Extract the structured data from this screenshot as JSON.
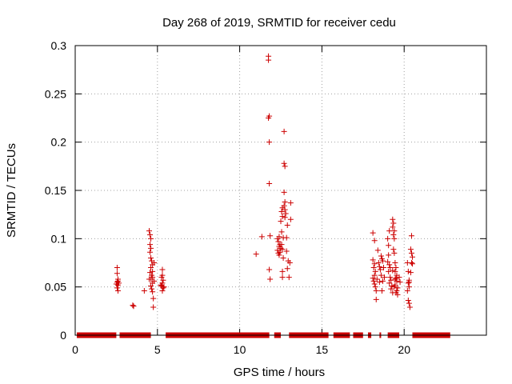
{
  "chart_data": {
    "type": "scatter",
    "title": "Day 268 of 2019, SRMTID for receiver cedu",
    "xlabel": "GPS time / hours",
    "ylabel": "SRMTID / TECUs",
    "xlim": [
      0,
      25
    ],
    "ylim": [
      0,
      0.3
    ],
    "xticks": [
      0,
      5,
      10,
      15,
      20
    ],
    "yticks": [
      0,
      0.05,
      0.1,
      0.15,
      0.2,
      0.25,
      0.3
    ],
    "grid": true,
    "marker": "+",
    "color": "#cc0000",
    "baseline_zero_segments": [
      [
        0.1,
        2.5
      ],
      [
        2.7,
        4.6
      ],
      [
        5.5,
        11.8
      ],
      [
        12.1,
        12.5
      ],
      [
        13.0,
        15.4
      ],
      [
        15.7,
        16.7
      ],
      [
        16.9,
        17.5
      ],
      [
        17.8,
        18.0
      ],
      [
        18.5,
        18.6
      ],
      [
        19.0,
        19.7
      ],
      [
        20.5,
        22.8
      ]
    ],
    "points": [
      [
        2.55,
        0.07
      ],
      [
        2.55,
        0.064
      ],
      [
        2.6,
        0.058
      ],
      [
        2.55,
        0.055
      ],
      [
        2.6,
        0.052
      ],
      [
        2.55,
        0.049
      ],
      [
        2.6,
        0.046
      ],
      [
        2.65,
        0.054
      ],
      [
        2.5,
        0.053
      ],
      [
        2.6,
        0.056
      ],
      [
        3.5,
        0.031
      ],
      [
        3.55,
        0.03
      ],
      [
        4.2,
        0.046
      ],
      [
        4.5,
        0.108
      ],
      [
        4.55,
        0.104
      ],
      [
        4.6,
        0.1
      ],
      [
        4.55,
        0.094
      ],
      [
        4.6,
        0.09
      ],
      [
        4.55,
        0.086
      ],
      [
        4.6,
        0.08
      ],
      [
        4.65,
        0.077
      ],
      [
        4.7,
        0.073
      ],
      [
        4.6,
        0.07
      ],
      [
        4.7,
        0.066
      ],
      [
        4.65,
        0.062
      ],
      [
        4.6,
        0.058
      ],
      [
        4.7,
        0.054
      ],
      [
        4.6,
        0.051
      ],
      [
        4.65,
        0.048
      ],
      [
        4.7,
        0.045
      ],
      [
        4.75,
        0.038
      ],
      [
        4.75,
        0.029
      ],
      [
        4.5,
        0.058
      ],
      [
        4.55,
        0.065
      ],
      [
        4.8,
        0.075
      ],
      [
        4.8,
        0.056
      ],
      [
        4.7,
        0.06
      ],
      [
        5.3,
        0.068
      ],
      [
        5.25,
        0.06
      ],
      [
        5.35,
        0.057
      ],
      [
        5.3,
        0.054
      ],
      [
        5.25,
        0.051
      ],
      [
        5.35,
        0.049
      ],
      [
        5.3,
        0.046
      ],
      [
        5.2,
        0.052
      ],
      [
        5.4,
        0.05
      ],
      [
        5.3,
        0.062
      ],
      [
        11.0,
        0.084
      ],
      [
        11.35,
        0.102
      ],
      [
        11.75,
        0.289
      ],
      [
        11.75,
        0.285
      ],
      [
        11.8,
        0.227
      ],
      [
        11.75,
        0.225
      ],
      [
        11.8,
        0.2
      ],
      [
        11.8,
        0.157
      ],
      [
        11.85,
        0.103
      ],
      [
        11.8,
        0.068
      ],
      [
        11.85,
        0.058
      ],
      [
        12.3,
        0.1
      ],
      [
        12.35,
        0.097
      ],
      [
        12.4,
        0.092
      ],
      [
        12.3,
        0.088
      ],
      [
        12.35,
        0.085
      ],
      [
        12.4,
        0.083
      ],
      [
        12.45,
        0.086
      ],
      [
        12.5,
        0.09
      ],
      [
        12.4,
        0.102
      ],
      [
        12.45,
        0.094
      ],
      [
        12.6,
        0.132
      ],
      [
        12.55,
        0.128
      ],
      [
        12.6,
        0.123
      ],
      [
        12.5,
        0.118
      ],
      [
        12.55,
        0.107
      ],
      [
        12.65,
        0.101
      ],
      [
        12.55,
        0.094
      ],
      [
        12.6,
        0.089
      ],
      [
        12.65,
        0.08
      ],
      [
        12.7,
        0.211
      ],
      [
        12.7,
        0.178
      ],
      [
        12.75,
        0.175
      ],
      [
        12.7,
        0.148
      ],
      [
        12.75,
        0.138
      ],
      [
        12.7,
        0.134
      ],
      [
        12.75,
        0.13
      ],
      [
        12.8,
        0.126
      ],
      [
        12.75,
        0.122
      ],
      [
        12.6,
        0.066
      ],
      [
        12.6,
        0.06
      ],
      [
        12.85,
        0.101
      ],
      [
        12.85,
        0.087
      ],
      [
        12.9,
        0.114
      ],
      [
        12.9,
        0.069
      ],
      [
        13.0,
        0.06
      ],
      [
        12.95,
        0.077
      ],
      [
        13.1,
        0.137
      ],
      [
        13.1,
        0.12
      ],
      [
        13.05,
        0.075
      ],
      [
        18.1,
        0.106
      ],
      [
        18.2,
        0.098
      ],
      [
        18.1,
        0.078
      ],
      [
        18.2,
        0.074
      ],
      [
        18.15,
        0.07
      ],
      [
        18.25,
        0.066
      ],
      [
        18.2,
        0.062
      ],
      [
        18.1,
        0.059
      ],
      [
        18.15,
        0.056
      ],
      [
        18.2,
        0.053
      ],
      [
        18.25,
        0.05
      ],
      [
        18.3,
        0.046
      ],
      [
        18.3,
        0.037
      ],
      [
        18.35,
        0.058
      ],
      [
        18.4,
        0.088
      ],
      [
        18.45,
        0.075
      ],
      [
        18.5,
        0.071
      ],
      [
        18.55,
        0.068
      ],
      [
        18.6,
        0.082
      ],
      [
        18.65,
        0.079
      ],
      [
        18.7,
        0.077
      ],
      [
        18.75,
        0.07
      ],
      [
        18.6,
        0.062
      ],
      [
        18.7,
        0.056
      ],
      [
        18.65,
        0.046
      ],
      [
        18.5,
        0.055
      ],
      [
        18.8,
        0.06
      ],
      [
        19.0,
        0.1
      ],
      [
        19.05,
        0.093
      ],
      [
        19.1,
        0.108
      ],
      [
        19.05,
        0.083
      ],
      [
        19.0,
        0.076
      ],
      [
        19.1,
        0.073
      ],
      [
        19.15,
        0.07
      ],
      [
        19.05,
        0.066
      ],
      [
        19.15,
        0.06
      ],
      [
        19.2,
        0.057
      ],
      [
        19.1,
        0.054
      ],
      [
        19.25,
        0.051
      ],
      [
        19.2,
        0.048
      ],
      [
        19.3,
        0.044
      ],
      [
        19.3,
        0.12
      ],
      [
        19.35,
        0.116
      ],
      [
        19.3,
        0.112
      ],
      [
        19.4,
        0.108
      ],
      [
        19.35,
        0.104
      ],
      [
        19.4,
        0.1
      ],
      [
        19.35,
        0.089
      ],
      [
        19.4,
        0.085
      ],
      [
        19.45,
        0.075
      ],
      [
        19.5,
        0.07
      ],
      [
        19.45,
        0.066
      ],
      [
        19.55,
        0.062
      ],
      [
        19.5,
        0.059
      ],
      [
        19.55,
        0.056
      ],
      [
        19.45,
        0.052
      ],
      [
        19.6,
        0.049
      ],
      [
        19.55,
        0.046
      ],
      [
        19.6,
        0.042
      ],
      [
        19.7,
        0.06
      ],
      [
        19.75,
        0.055
      ],
      [
        19.3,
        0.067
      ],
      [
        19.45,
        0.058
      ],
      [
        19.4,
        0.05
      ],
      [
        19.5,
        0.044
      ],
      [
        20.2,
        0.075
      ],
      [
        20.25,
        0.066
      ],
      [
        20.3,
        0.057
      ],
      [
        20.25,
        0.054
      ],
      [
        20.3,
        0.05
      ],
      [
        20.2,
        0.046
      ],
      [
        20.25,
        0.036
      ],
      [
        20.3,
        0.033
      ],
      [
        20.35,
        0.029
      ],
      [
        20.3,
        0.055
      ],
      [
        20.45,
        0.103
      ],
      [
        20.4,
        0.089
      ],
      [
        20.45,
        0.085
      ],
      [
        20.5,
        0.081
      ],
      [
        20.45,
        0.075
      ],
      [
        20.5,
        0.074
      ],
      [
        20.4,
        0.065
      ]
    ]
  }
}
